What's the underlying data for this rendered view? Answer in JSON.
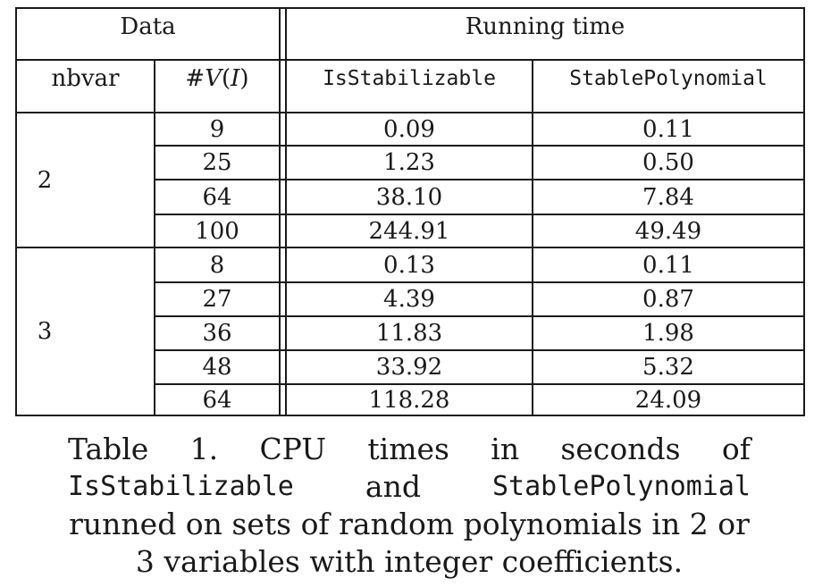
{
  "table": {
    "group_headers": {
      "data": "Data",
      "running_time": "Running time"
    },
    "column_headers": {
      "nbvar": "nbvar",
      "vi_prefix": "#",
      "vi_main": "V",
      "vi_open": "(",
      "vi_arg": "I",
      "vi_close": ")",
      "is_stabilizable": "IsStabilizable",
      "stable_polynomial": "StablePolynomial"
    },
    "groups": [
      {
        "nbvar": "2",
        "rows": [
          {
            "v": "9",
            "is_stab": "0.09",
            "stable_poly": "0.11"
          },
          {
            "v": "25",
            "is_stab": "1.23",
            "stable_poly": "0.50"
          },
          {
            "v": "64",
            "is_stab": "38.10",
            "stable_poly": "7.84"
          },
          {
            "v": "100",
            "is_stab": "244.91",
            "stable_poly": "49.49"
          }
        ]
      },
      {
        "nbvar": "3",
        "rows": [
          {
            "v": "8",
            "is_stab": "0.13",
            "stable_poly": "0.11"
          },
          {
            "v": "27",
            "is_stab": "4.39",
            "stable_poly": "0.87"
          },
          {
            "v": "36",
            "is_stab": "11.83",
            "stable_poly": "1.98"
          },
          {
            "v": "48",
            "is_stab": "33.92",
            "stable_poly": "5.32"
          },
          {
            "v": "64",
            "is_stab": "118.28",
            "stable_poly": "24.09"
          }
        ]
      }
    ]
  },
  "caption": {
    "line1": [
      "Table",
      "1.",
      "CPU",
      "times",
      "in",
      "seconds",
      "of"
    ],
    "line2_code1": "IsStabilizable",
    "line2_word": "and",
    "line2_code2": "StablePolynomial",
    "line3": "runned on sets of random polynomials in 2 or",
    "line4": "3 variables with integer coefficients."
  }
}
